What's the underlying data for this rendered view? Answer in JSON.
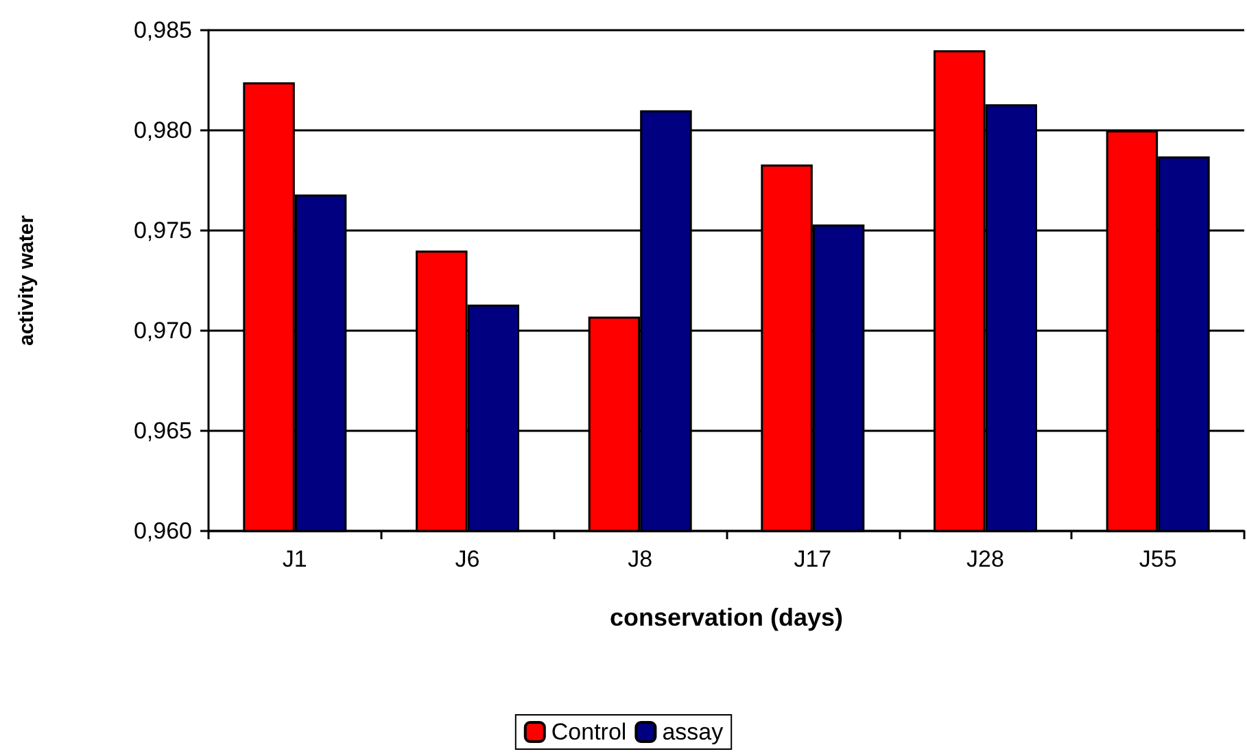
{
  "chart_data": {
    "type": "bar",
    "xlabel": "conservation (days)",
    "ylabel": "activity water",
    "categories": [
      "J1",
      "J6",
      "J8",
      "J17",
      "J28",
      "J55"
    ],
    "series": [
      {
        "name": "Control",
        "color": "#ff0000",
        "values": [
          0.9824,
          0.974,
          0.9707,
          0.9783,
          0.984,
          0.98
        ]
      },
      {
        "name": "assay",
        "color": "#000080",
        "values": [
          0.9768,
          0.9713,
          0.981,
          0.9753,
          0.9813,
          0.9787
        ]
      }
    ],
    "ylim": [
      0.96,
      0.985
    ],
    "yticks": [
      {
        "value": 0.96,
        "label": "0,960"
      },
      {
        "value": 0.965,
        "label": "0,965"
      },
      {
        "value": 0.97,
        "label": "0,970"
      },
      {
        "value": 0.975,
        "label": "0,975"
      },
      {
        "value": 0.98,
        "label": "0,980"
      },
      {
        "value": 0.985,
        "label": "0,985"
      }
    ],
    "grid": "y",
    "legend": "bottom"
  }
}
